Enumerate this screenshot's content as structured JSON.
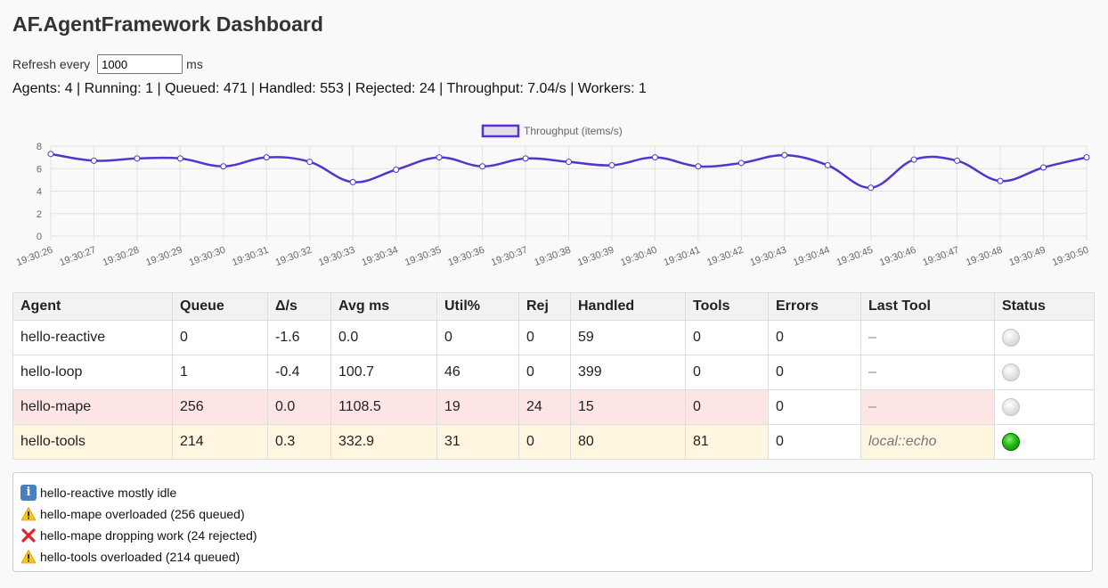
{
  "app": {
    "title": "AF.AgentFramework Dashboard"
  },
  "refresh": {
    "label": "Refresh every",
    "value": "1000",
    "unit": "ms"
  },
  "stats_line": "Agents: 4 | Running: 1 | Queued: 471 | Handled: 553 | Rejected: 24 | Throughput: 7.04/s | Workers: 1",
  "chart_data": {
    "type": "line",
    "legend": "Throughput (items/s)",
    "legend_position": "top-center",
    "grid": true,
    "ylim": [
      0,
      8
    ],
    "yticks": [
      0,
      2,
      4,
      6,
      8
    ],
    "series_color": "#5533cc",
    "x": [
      "19:30:26",
      "19:30:27",
      "19:30:28",
      "19:30:29",
      "19:30:30",
      "19:30:31",
      "19:30:32",
      "19:30:33",
      "19:30:34",
      "19:30:35",
      "19:30:36",
      "19:30:37",
      "19:30:38",
      "19:30:39",
      "19:30:40",
      "19:30:41",
      "19:30:42",
      "19:30:43",
      "19:30:44",
      "19:30:45",
      "19:30:46",
      "19:30:47",
      "19:30:48",
      "19:30:49",
      "19:30:50"
    ],
    "series": [
      {
        "name": "Throughput (items/s)",
        "values": [
          7.3,
          6.7,
          6.9,
          6.9,
          6.2,
          7.0,
          6.6,
          4.8,
          5.9,
          7.0,
          6.2,
          6.9,
          6.6,
          6.3,
          7.0,
          6.2,
          6.5,
          7.2,
          6.3,
          4.3,
          6.8,
          6.7,
          4.9,
          6.1,
          7.0
        ]
      }
    ]
  },
  "table": {
    "headers": [
      "Agent",
      "Queue",
      "Δ/s",
      "Avg ms",
      "Util%",
      "Rej",
      "Handled",
      "Tools",
      "Errors",
      "Last Tool",
      "Status"
    ],
    "rows": [
      {
        "agent": "hello-reactive",
        "queue": "0",
        "delta": "-1.6",
        "avg": "0.0",
        "util": "0",
        "rej": "0",
        "handled": "59",
        "tools": "0",
        "errors": "0",
        "last_tool": "–",
        "status": "idle",
        "highlight": "none"
      },
      {
        "agent": "hello-loop",
        "queue": "1",
        "delta": "-0.4",
        "avg": "100.7",
        "util": "46",
        "rej": "0",
        "handled": "399",
        "tools": "0",
        "errors": "0",
        "last_tool": "–",
        "status": "idle",
        "highlight": "none"
      },
      {
        "agent": "hello-mape",
        "queue": "256",
        "delta": "0.0",
        "avg": "1108.5",
        "util": "19",
        "rej": "24",
        "handled": "15",
        "tools": "0",
        "errors": "0",
        "last_tool": "–",
        "status": "idle",
        "highlight": "red"
      },
      {
        "agent": "hello-tools",
        "queue": "214",
        "delta": "0.3",
        "avg": "332.9",
        "util": "31",
        "rej": "0",
        "handled": "80",
        "tools": "81",
        "errors": "0",
        "last_tool": "local::echo",
        "status": "active",
        "highlight": "yellow"
      }
    ]
  },
  "alerts": [
    {
      "icon": "info-icon",
      "text": "hello-reactive mostly idle"
    },
    {
      "icon": "warning-icon",
      "text": "hello-mape overloaded (256 queued)"
    },
    {
      "icon": "cross-icon",
      "text": "hello-mape dropping work (24 rejected)"
    },
    {
      "icon": "warning-icon",
      "text": "hello-tools overloaded (214 queued)"
    }
  ],
  "colors": {
    "row_red": "#fde5e5",
    "row_yellow": "#fff6e0",
    "status_active": "#2cc01a",
    "status_idle": "#d8d8d8"
  }
}
